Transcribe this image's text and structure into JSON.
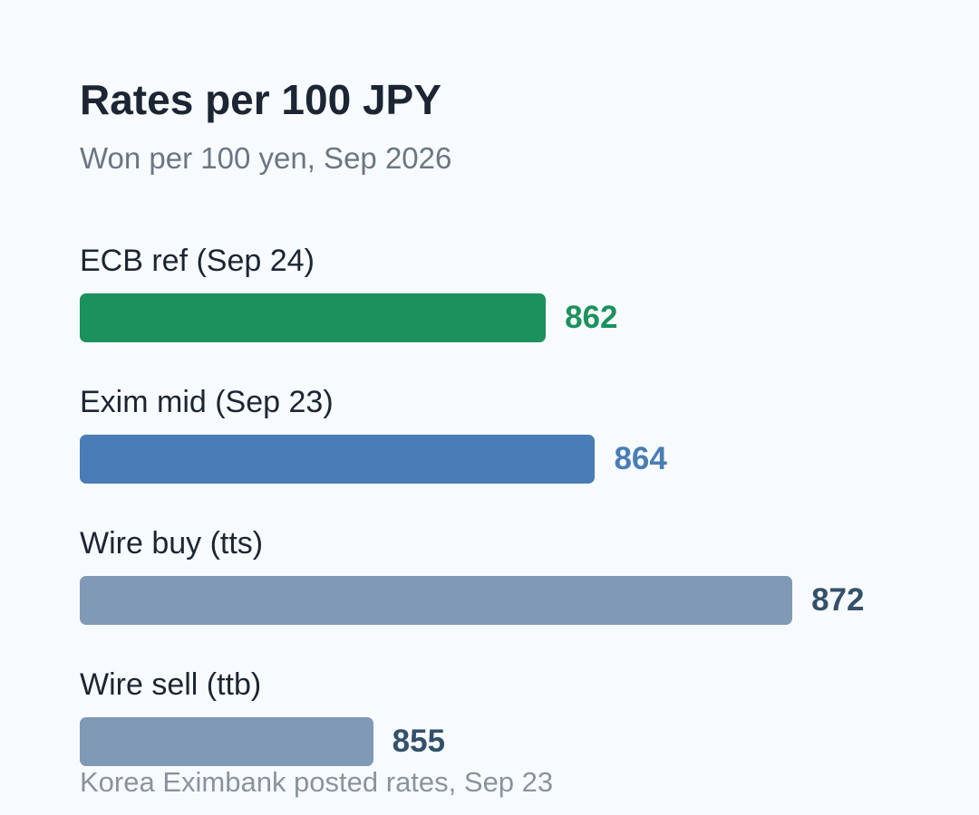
{
  "chart_data": {
    "type": "bar",
    "orientation": "horizontal",
    "title": "Rates per 100 JPY",
    "subtitle": "Won per 100 yen, Sep 2026",
    "source": "Korea Eximbank posted rates, Sep 23",
    "categories": [
      "ECB ref (Sep 24)",
      "Exim mid (Sep 23)",
      "Wire buy (tts)",
      "Wire sell (ttb)"
    ],
    "values": [
      862,
      864,
      872,
      855
    ],
    "value_labels": [
      "862",
      "864",
      "872",
      "855"
    ],
    "bar_colors": [
      "#1c915d",
      "#4a7db5",
      "#7f99b7",
      "#7f99b7"
    ],
    "label_colors": [
      "#1c915d",
      "#4a7db5",
      "#34506b",
      "#34506b"
    ],
    "grid": false,
    "legend": "none"
  }
}
